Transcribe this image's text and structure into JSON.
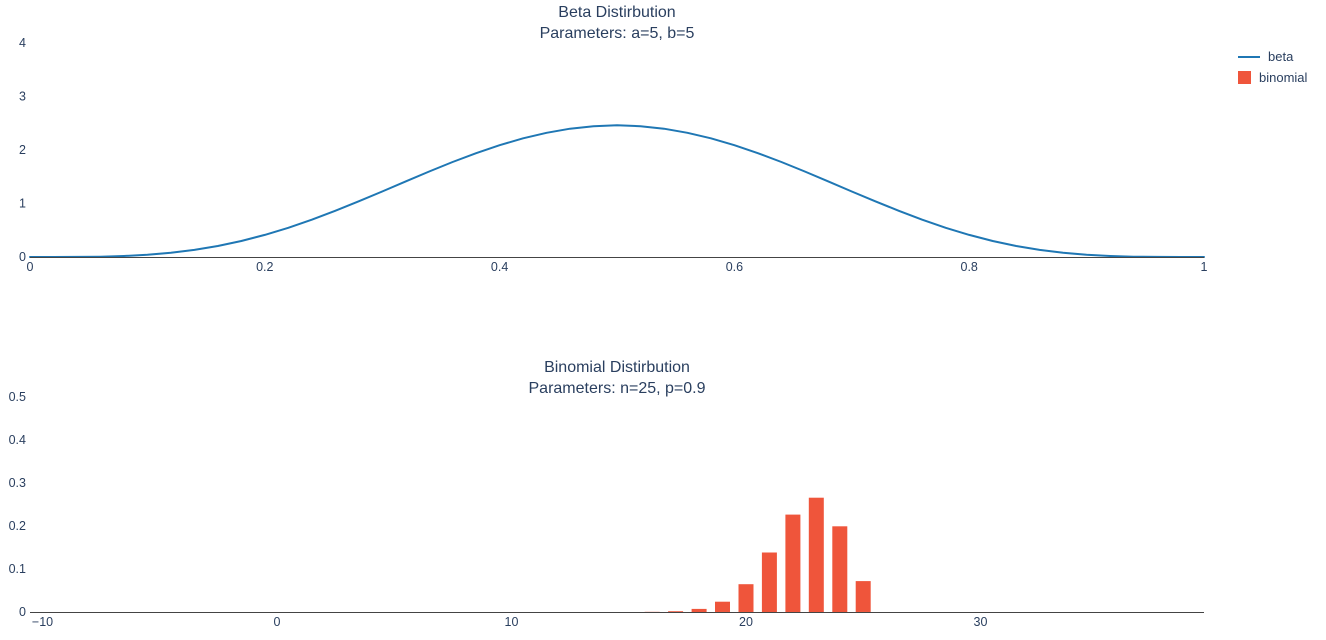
{
  "page": {
    "background": "#ffffff"
  },
  "legend": {
    "items": [
      {
        "label": "beta",
        "glyph": "line",
        "color": "#1f77b4"
      },
      {
        "label": "binomial",
        "glyph": "square",
        "color": "#ef553b"
      }
    ]
  },
  "chart_data": [
    {
      "type": "line",
      "title": "Beta Distirbution",
      "subtitle": "Parameters: a=5, b=5",
      "xlabel": "",
      "ylabel": "",
      "xlim": [
        0,
        1
      ],
      "ylim": [
        0,
        4.2
      ],
      "grid": false,
      "legend_position": "right-outside",
      "xtick_values": [
        0,
        0.2,
        0.4,
        0.6,
        0.8,
        1
      ],
      "xtick_labels": [
        "0",
        "0.2",
        "0.4",
        "0.6",
        "0.8",
        "1"
      ],
      "ytick_values": [
        0,
        1,
        2,
        3,
        4
      ],
      "ytick_labels": [
        "0",
        "1",
        "2",
        "3",
        "4"
      ],
      "series": [
        {
          "name": "beta",
          "color": "#1f77b4",
          "x": [
            0.0,
            0.02,
            0.04,
            0.06,
            0.08,
            0.1,
            0.12,
            0.14,
            0.16,
            0.18,
            0.2,
            0.22,
            0.24,
            0.26,
            0.28,
            0.3,
            0.32,
            0.34,
            0.36,
            0.38,
            0.4,
            0.42,
            0.44,
            0.46,
            0.48,
            0.5,
            0.52,
            0.54,
            0.56,
            0.58,
            0.6,
            0.62,
            0.64,
            0.66,
            0.68,
            0.7,
            0.72,
            0.74,
            0.76,
            0.78,
            0.8,
            0.82,
            0.84,
            0.86,
            0.88,
            0.9,
            0.92,
            0.94,
            0.96,
            0.98,
            1.0
          ],
          "y": [
            0.0,
            0.0001,
            0.0014,
            0.0064,
            0.0185,
            0.0413,
            0.0783,
            0.1324,
            0.2056,
            0.299,
            0.4129,
            0.5463,
            0.6973,
            0.8633,
            1.0406,
            1.2252,
            1.4125,
            1.5975,
            1.7753,
            1.9411,
            2.0902,
            2.2185,
            2.3222,
            2.3985,
            2.4452,
            2.4609,
            2.4452,
            2.3985,
            2.3222,
            2.2185,
            2.0902,
            1.9411,
            1.7753,
            1.5975,
            1.4125,
            1.2252,
            1.0406,
            0.8633,
            0.6973,
            0.5463,
            0.4129,
            0.299,
            0.2056,
            0.1324,
            0.0783,
            0.0413,
            0.0185,
            0.0064,
            0.0014,
            0.0001,
            0.0
          ]
        }
      ]
    },
    {
      "type": "bar",
      "title": "Binomial Distirbution",
      "subtitle": "Parameters: n=25, p=0.9",
      "xlabel": "",
      "ylabel": "",
      "xlim": [
        -10.5,
        39.5
      ],
      "ylim": [
        0,
        0.55
      ],
      "grid": false,
      "bar_color": "#ef553b",
      "bar_width": 0.64,
      "xtick_values": [
        -10,
        0,
        10,
        20,
        30
      ],
      "xtick_labels": [
        "−10",
        "0",
        "10",
        "20",
        "30"
      ],
      "ytick_values": [
        0,
        0.1,
        0.2,
        0.3,
        0.4,
        0.5
      ],
      "ytick_labels": [
        "0",
        "0.1",
        "0.2",
        "0.3",
        "0.4",
        "0.5"
      ],
      "categories": [
        15,
        16,
        17,
        18,
        19,
        20,
        21,
        22,
        23,
        24,
        25
      ],
      "values": [
        0.0001,
        0.0004,
        0.0018,
        0.0072,
        0.0239,
        0.0646,
        0.1384,
        0.2265,
        0.2659,
        0.1994,
        0.0718
      ]
    }
  ]
}
